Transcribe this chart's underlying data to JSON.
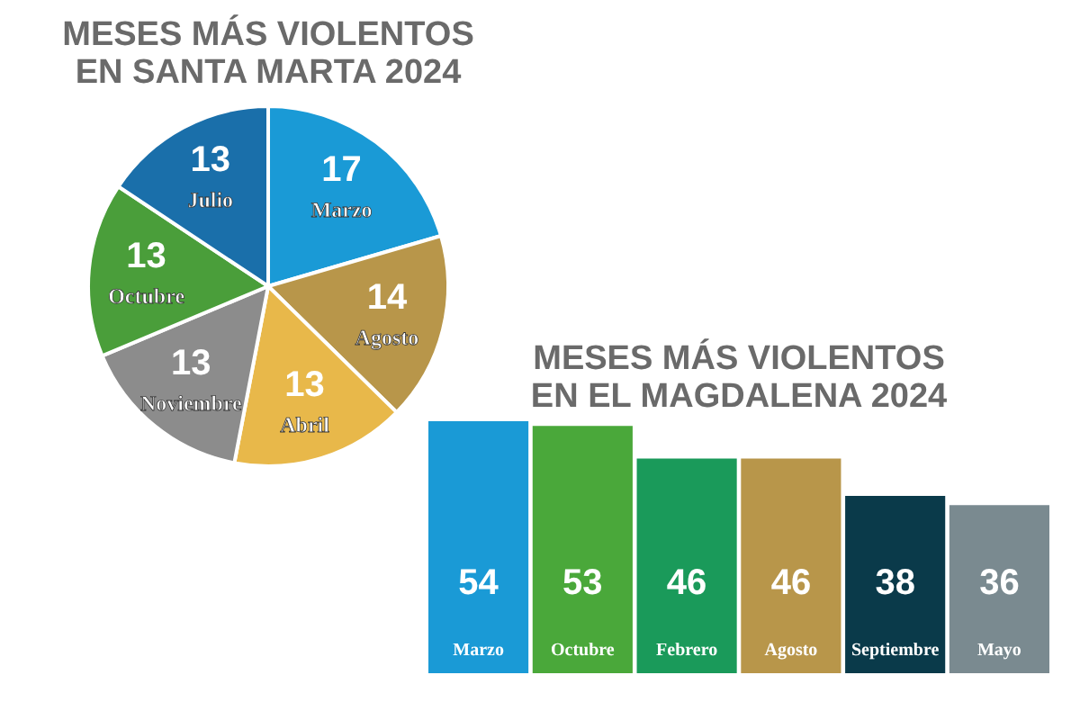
{
  "chart_data": [
    {
      "type": "pie",
      "title": "MESES MÁS VIOLENTOS EN SANTA MARTA 2024",
      "categories": [
        "Marzo",
        "Agosto",
        "Abril",
        "Noviembre",
        "Octubre",
        "Julio"
      ],
      "values": [
        17,
        14,
        13,
        13,
        13,
        13
      ],
      "colors": [
        "#1a9ad6",
        "#b8964a",
        "#e8b84a",
        "#8c8c8c",
        "#4a9e3a",
        "#1a6faa"
      ],
      "data_labels": true
    },
    {
      "type": "bar",
      "title": "MESES MÁS VIOLENTOS EN EL MAGDALENA 2024",
      "categories": [
        "Marzo",
        "Octubre",
        "Febrero",
        "Agosto",
        "Septiembre",
        "Mayo"
      ],
      "values": [
        54,
        53,
        46,
        46,
        38,
        36
      ],
      "colors": [
        "#1a9ad6",
        "#4aa83a",
        "#1a9a5a",
        "#b8964a",
        "#0a3a4a",
        "#7a8a90"
      ],
      "data_labels": true
    }
  ]
}
